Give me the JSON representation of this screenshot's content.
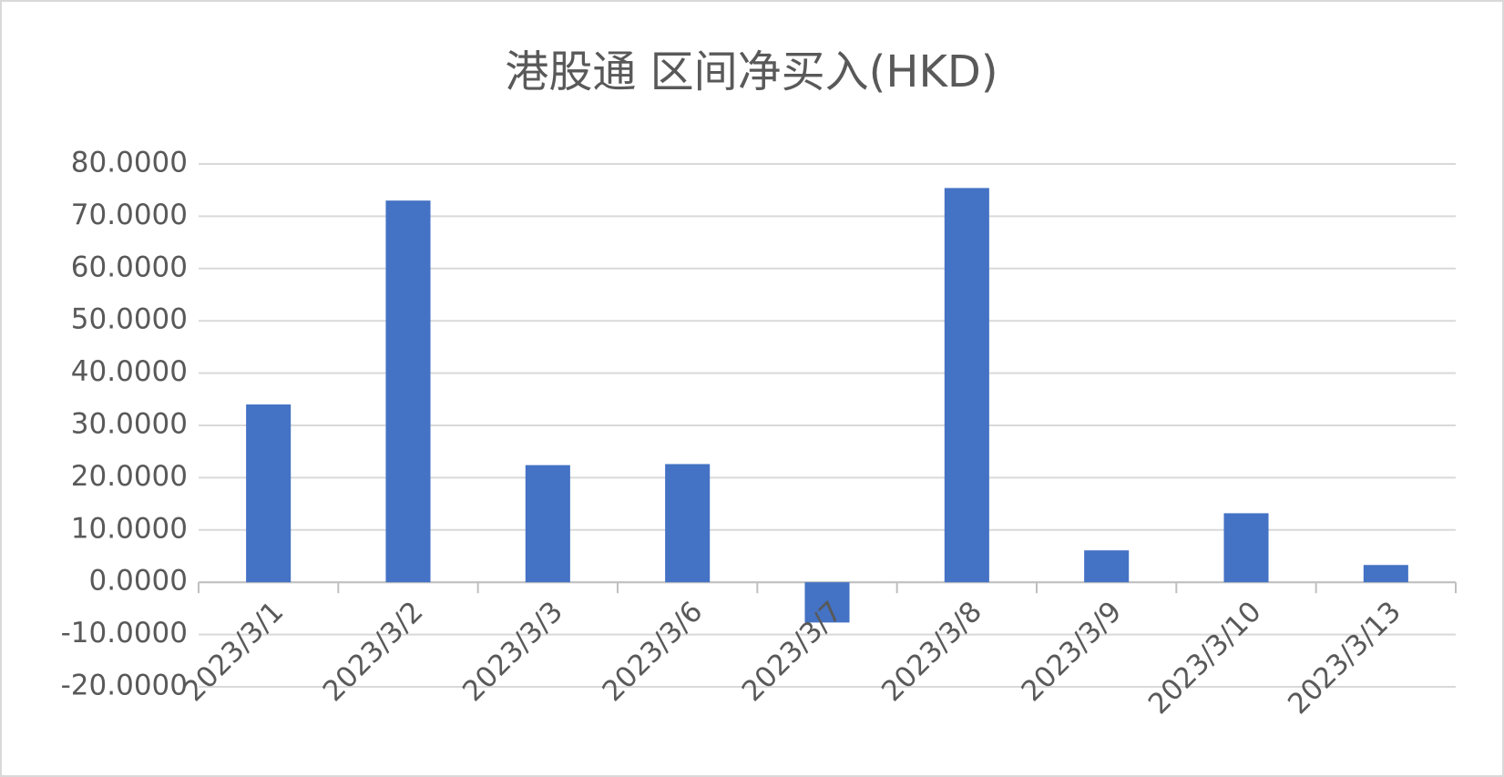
{
  "chart_data": {
    "type": "bar",
    "title": "港股通 区间净买入(HKD)",
    "categories": [
      "2023/3/1",
      "2023/3/2",
      "2023/3/3",
      "2023/3/6",
      "2023/3/7",
      "2023/3/8",
      "2023/3/9",
      "2023/3/10",
      "2023/3/13"
    ],
    "values": [
      34.0,
      73.0,
      22.4,
      22.6,
      -7.7,
      75.4,
      6.1,
      13.2,
      3.3
    ],
    "color": "#4472c4",
    "ylim": [
      -20,
      80
    ],
    "yticks": [
      {
        "value": -20,
        "label": "-20.0000"
      },
      {
        "value": -10,
        "label": "-10.0000"
      },
      {
        "value": 0,
        "label": "0.0000"
      },
      {
        "value": 10,
        "label": "10.0000"
      },
      {
        "value": 20,
        "label": "20.0000"
      },
      {
        "value": 30,
        "label": "30.0000"
      },
      {
        "value": 40,
        "label": "40.0000"
      },
      {
        "value": 50,
        "label": "50.0000"
      },
      {
        "value": 60,
        "label": "60.0000"
      },
      {
        "value": 70,
        "label": "70.0000"
      },
      {
        "value": 80,
        "label": "80.0000"
      }
    ],
    "grid": true
  }
}
